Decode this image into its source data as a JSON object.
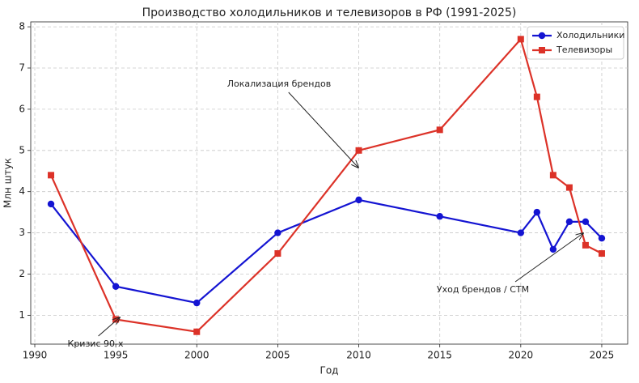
{
  "chart_data": {
    "type": "line",
    "title": "Производство холодильников и телевизоров в РФ (1991-2025)",
    "x_label": "Год",
    "y_label": "Млн штук",
    "x": [
      1991,
      1995,
      2000,
      2005,
      2010,
      2015,
      2020,
      2021,
      2022,
      2023,
      2024,
      2025
    ],
    "series": [
      {
        "name": "Холодильники",
        "color": "#1414d2",
        "marker": "circle",
        "values": [
          3.7,
          1.7,
          1.3,
          3.0,
          3.8,
          3.4,
          3.0,
          3.5,
          2.6,
          3.27,
          3.27,
          2.87
        ]
      },
      {
        "name": "Телевизоры",
        "color": "#dc3228",
        "marker": "square",
        "values": [
          4.4,
          0.9,
          0.6,
          2.5,
          5.0,
          5.5,
          7.7,
          6.3,
          4.4,
          4.1,
          2.7,
          2.5
        ]
      }
    ],
    "xlim": [
      1989.75,
      2026.6
    ],
    "xticks": [
      1990,
      1995,
      2000,
      2005,
      2010,
      2015,
      2020,
      2025
    ],
    "ylim": [
      0.3,
      8.12
    ],
    "yticks": [
      1,
      2,
      3,
      4,
      5,
      6,
      7,
      8
    ],
    "grid": true,
    "legend": "upper right",
    "annotations": [
      "Локализация брендов",
      "Уход брендов / СТМ",
      "Кризис 90-х"
    ]
  }
}
